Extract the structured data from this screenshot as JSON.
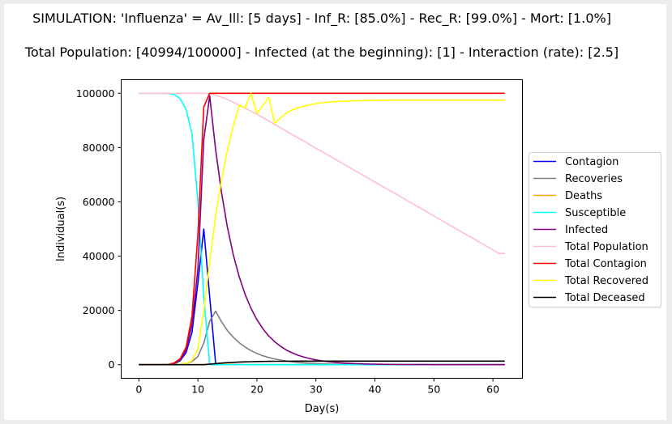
{
  "chart_data": {
    "type": "line",
    "title_line1": "SIMULATION: 'Influenza' = Av_Ill: [5 days] - Inf_R: [85.0%] - Rec_R: [99.0%] - Mort: [1.0%]",
    "title_line2": "Total Population: [40994/100000] - Infected (at the beginning): [1] - Interaction (rate): [2.5]",
    "xlabel": "Day(s)",
    "ylabel": "Individual(s)",
    "xlim": [
      -3,
      65
    ],
    "ylim": [
      -5000,
      105000
    ],
    "xticks": [
      0,
      10,
      20,
      30,
      40,
      50,
      60
    ],
    "yticks": [
      0,
      20000,
      40000,
      60000,
      80000,
      100000
    ],
    "grid": false,
    "legend_placement": "center-right-outside",
    "x_start": 0,
    "series": [
      {
        "name": "Contagion",
        "color": "#0000ff",
        "values": [
          0,
          0,
          0,
          0,
          0,
          100,
          300,
          1500,
          4500,
          12000,
          30000,
          50000,
          25000,
          500,
          0,
          0,
          0,
          0,
          0,
          0,
          0,
          0,
          0,
          0,
          0,
          0,
          0,
          0,
          0,
          0,
          0,
          0,
          0,
          0,
          0,
          0,
          0,
          0,
          0,
          0,
          0,
          0,
          0,
          0,
          0,
          0,
          0,
          0,
          0,
          0,
          0,
          0,
          0,
          0,
          0,
          0,
          0,
          0,
          0,
          0,
          0,
          0,
          0
        ]
      },
      {
        "name": "Recoveries",
        "color": "#808080",
        "values": [
          0,
          0,
          0,
          0,
          0,
          10,
          50,
          200,
          500,
          1200,
          3000,
          8000,
          16000,
          19700,
          15800,
          12600,
          10100,
          8100,
          6500,
          5200,
          4150,
          3300,
          2650,
          2120,
          1700,
          1360,
          1090,
          870,
          700,
          560,
          450,
          360,
          290,
          230,
          180,
          150,
          120,
          90,
          75,
          60,
          50,
          40,
          30,
          25,
          20,
          15,
          12,
          10,
          8,
          6,
          5,
          4,
          3,
          2,
          2,
          1,
          1,
          1,
          0,
          0,
          0,
          0,
          0
        ]
      },
      {
        "name": "Deaths",
        "color": "#ffa500",
        "values": [
          0,
          0,
          0,
          0,
          0,
          0,
          0,
          0,
          0,
          12,
          30,
          80,
          160,
          200,
          160,
          127,
          102,
          82,
          66,
          53,
          42,
          33,
          27,
          21,
          17,
          14,
          11,
          9,
          7,
          6,
          5,
          4,
          3,
          2,
          2,
          2,
          1,
          1,
          1,
          0,
          0,
          0,
          0,
          0,
          0,
          0,
          0,
          0,
          0,
          0,
          0,
          0,
          0,
          0,
          0,
          0,
          0,
          0,
          0,
          0,
          0,
          0,
          0
        ]
      },
      {
        "name": "Susceptible",
        "color": "#00ffff",
        "values": [
          100000,
          100000,
          100000,
          100000,
          100000,
          99900,
          99500,
          98000,
          94000,
          85000,
          60000,
          25000,
          0,
          0,
          0,
          0,
          0,
          0,
          0,
          0,
          0,
          0,
          0,
          0,
          0,
          0,
          0,
          0,
          0,
          0,
          0,
          0,
          0,
          0,
          0,
          0,
          0,
          0,
          0,
          0,
          0,
          0,
          0,
          0,
          0,
          0,
          0,
          0,
          0,
          0,
          0,
          0,
          0,
          0,
          0,
          0,
          0,
          0,
          0,
          0,
          0,
          0,
          0
        ]
      },
      {
        "name": "Infected",
        "color": "#800080",
        "values": [
          1,
          1,
          2,
          5,
          20,
          100,
          400,
          1800,
          5500,
          15000,
          35000,
          83000,
          99000,
          79200,
          63400,
          50700,
          40500,
          32400,
          25900,
          20800,
          16600,
          13300,
          10600,
          8500,
          6800,
          5400,
          4350,
          3480,
          2780,
          2230,
          1780,
          1430,
          1140,
          910,
          730,
          580,
          470,
          370,
          300,
          240,
          190,
          150,
          120,
          100,
          80,
          60,
          50,
          40,
          30,
          25,
          20,
          15,
          12,
          10,
          8,
          6,
          5,
          4,
          3,
          2,
          2,
          1,
          1
        ]
      },
      {
        "name": "Total Population",
        "color": "#ffc0cb",
        "values": [
          100000,
          100000,
          100000,
          100000,
          100000,
          100000,
          100000,
          100000,
          100000,
          100000,
          100000,
          100000,
          99800,
          99300,
          98600,
          97700,
          96700,
          95600,
          94500,
          93400,
          92300,
          91050,
          89800,
          88550,
          87300,
          86050,
          84800,
          83550,
          82300,
          81050,
          79800,
          78550,
          77300,
          76050,
          74800,
          73550,
          72300,
          71050,
          69800,
          68550,
          67300,
          66050,
          64800,
          63550,
          62300,
          61050,
          59800,
          58550,
          57300,
          56050,
          54800,
          53550,
          52300,
          51050,
          49800,
          48550,
          47300,
          46050,
          44800,
          43550,
          42300,
          40994,
          40994
        ]
      },
      {
        "name": "Total Contagion",
        "color": "#ff0000",
        "values": [
          1,
          1,
          2,
          5,
          20,
          100,
          700,
          2200,
          6500,
          18000,
          48000,
          95000,
          100000,
          100000,
          100000,
          100000,
          100000,
          100000,
          100000,
          100000,
          100000,
          100000,
          100000,
          100000,
          100000,
          100000,
          100000,
          100000,
          100000,
          100000,
          100000,
          100000,
          100000,
          100000,
          100000,
          100000,
          100000,
          100000,
          100000,
          100000,
          100000,
          100000,
          100000,
          100000,
          100000,
          100000,
          100000,
          100000,
          100000,
          100000,
          100000,
          100000,
          100000,
          100000,
          100000,
          100000,
          100000,
          100000,
          100000,
          100000,
          100000,
          100000,
          100000
        ]
      },
      {
        "name": "Total Recovered",
        "color": "#ffff00",
        "values": [
          0,
          0,
          0,
          0,
          0,
          0,
          50,
          200,
          500,
          1500,
          6000,
          20000,
          38000,
          55000,
          68000,
          79000,
          88000,
          95500,
          94700,
          100000,
          92600,
          95500,
          98500,
          89000,
          91000,
          92700,
          93900,
          94700,
          95300,
          95800,
          96200,
          96500,
          96700,
          96900,
          97000,
          97100,
          97200,
          97250,
          97300,
          97350,
          97400,
          97450,
          97450,
          97450,
          97450,
          97450,
          97450,
          97450,
          97450,
          97450,
          97450,
          97450,
          97450,
          97450,
          97450,
          97450,
          97450,
          97450,
          97450,
          97450,
          97450,
          97450,
          97450
        ]
      },
      {
        "name": "Total Deceased",
        "color": "#000000",
        "values": [
          0,
          0,
          0,
          0,
          0,
          0,
          0,
          0,
          0,
          0,
          0,
          0,
          200,
          400,
          600,
          750,
          880,
          980,
          1050,
          1110,
          1160,
          1200,
          1230,
          1250,
          1270,
          1285,
          1295,
          1305,
          1310,
          1315,
          1315,
          1315,
          1315,
          1315,
          1315,
          1315,
          1315,
          1315,
          1315,
          1315,
          1315,
          1315,
          1315,
          1315,
          1315,
          1315,
          1315,
          1315,
          1315,
          1315,
          1315,
          1315,
          1315,
          1315,
          1315,
          1315,
          1315,
          1315,
          1315,
          1315,
          1315,
          1315,
          1315
        ]
      }
    ]
  }
}
